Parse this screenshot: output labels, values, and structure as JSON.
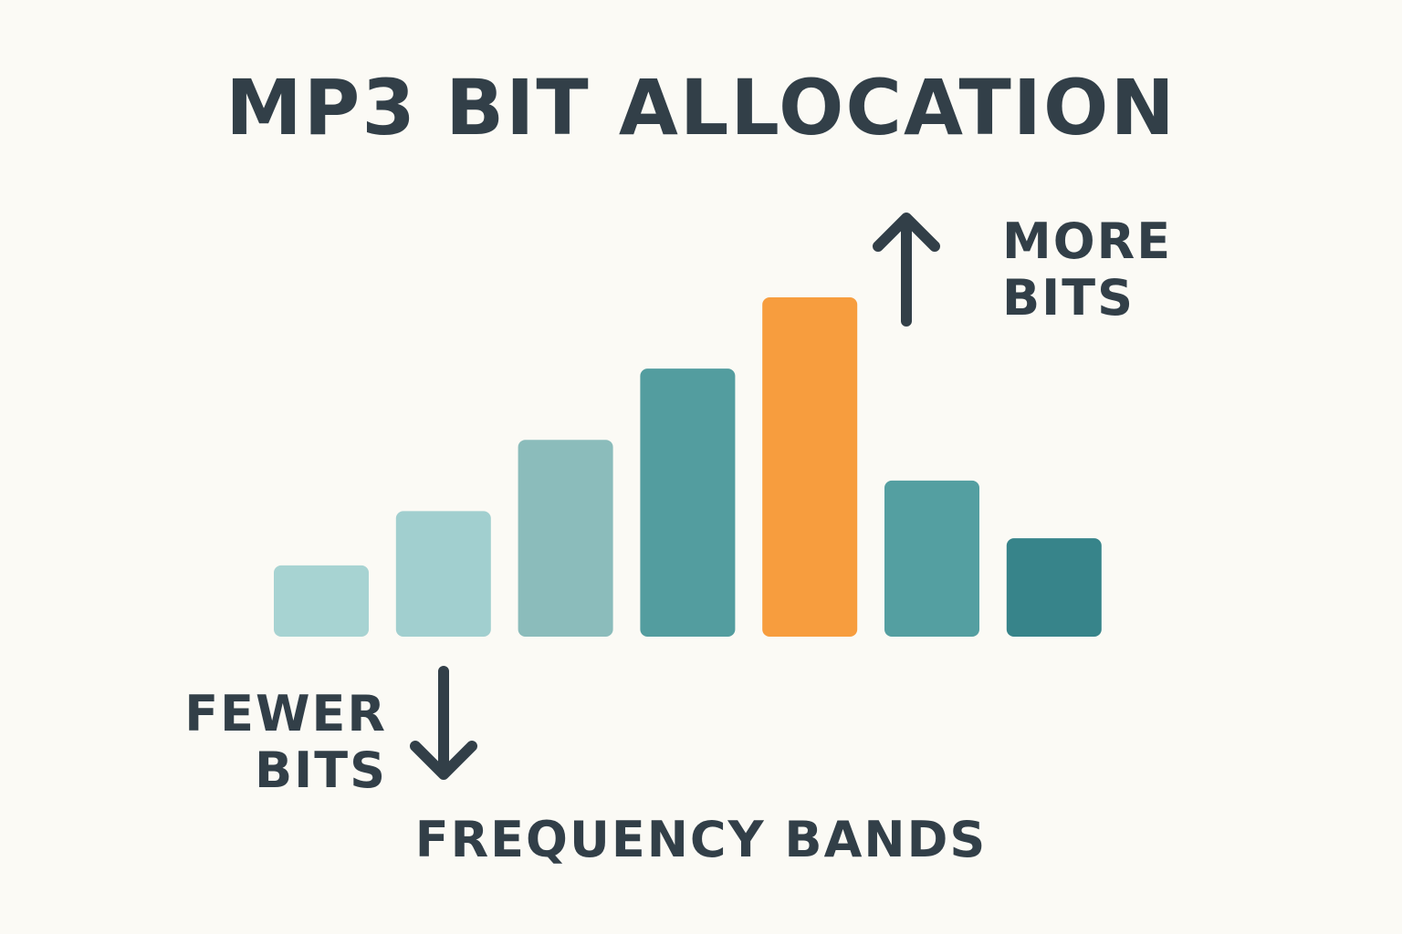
{
  "title": "MP3 BIT ALLOCATION",
  "annotations": {
    "more": [
      "MORE",
      "BITS"
    ],
    "fewer": [
      "FEWER",
      "BITS"
    ]
  },
  "chart_data": {
    "type": "bar",
    "title": "MP3 BIT ALLOCATION",
    "xlabel": "FREQUENCY BANDS",
    "ylabel": "",
    "categories": [
      "",
      "",
      "",
      "",
      "",
      "",
      ""
    ],
    "values": [
      2.1,
      3.7,
      5.8,
      7.9,
      10.0,
      4.6,
      2.9
    ],
    "ylim": [
      0,
      10
    ],
    "grid": false,
    "colors": [
      "#a7d3d2",
      "#a1cfcf",
      "#8bbcbb",
      "#539d9f",
      "#f79d3e",
      "#549fa1",
      "#37848a"
    ],
    "arrow_color": "#323f48"
  }
}
